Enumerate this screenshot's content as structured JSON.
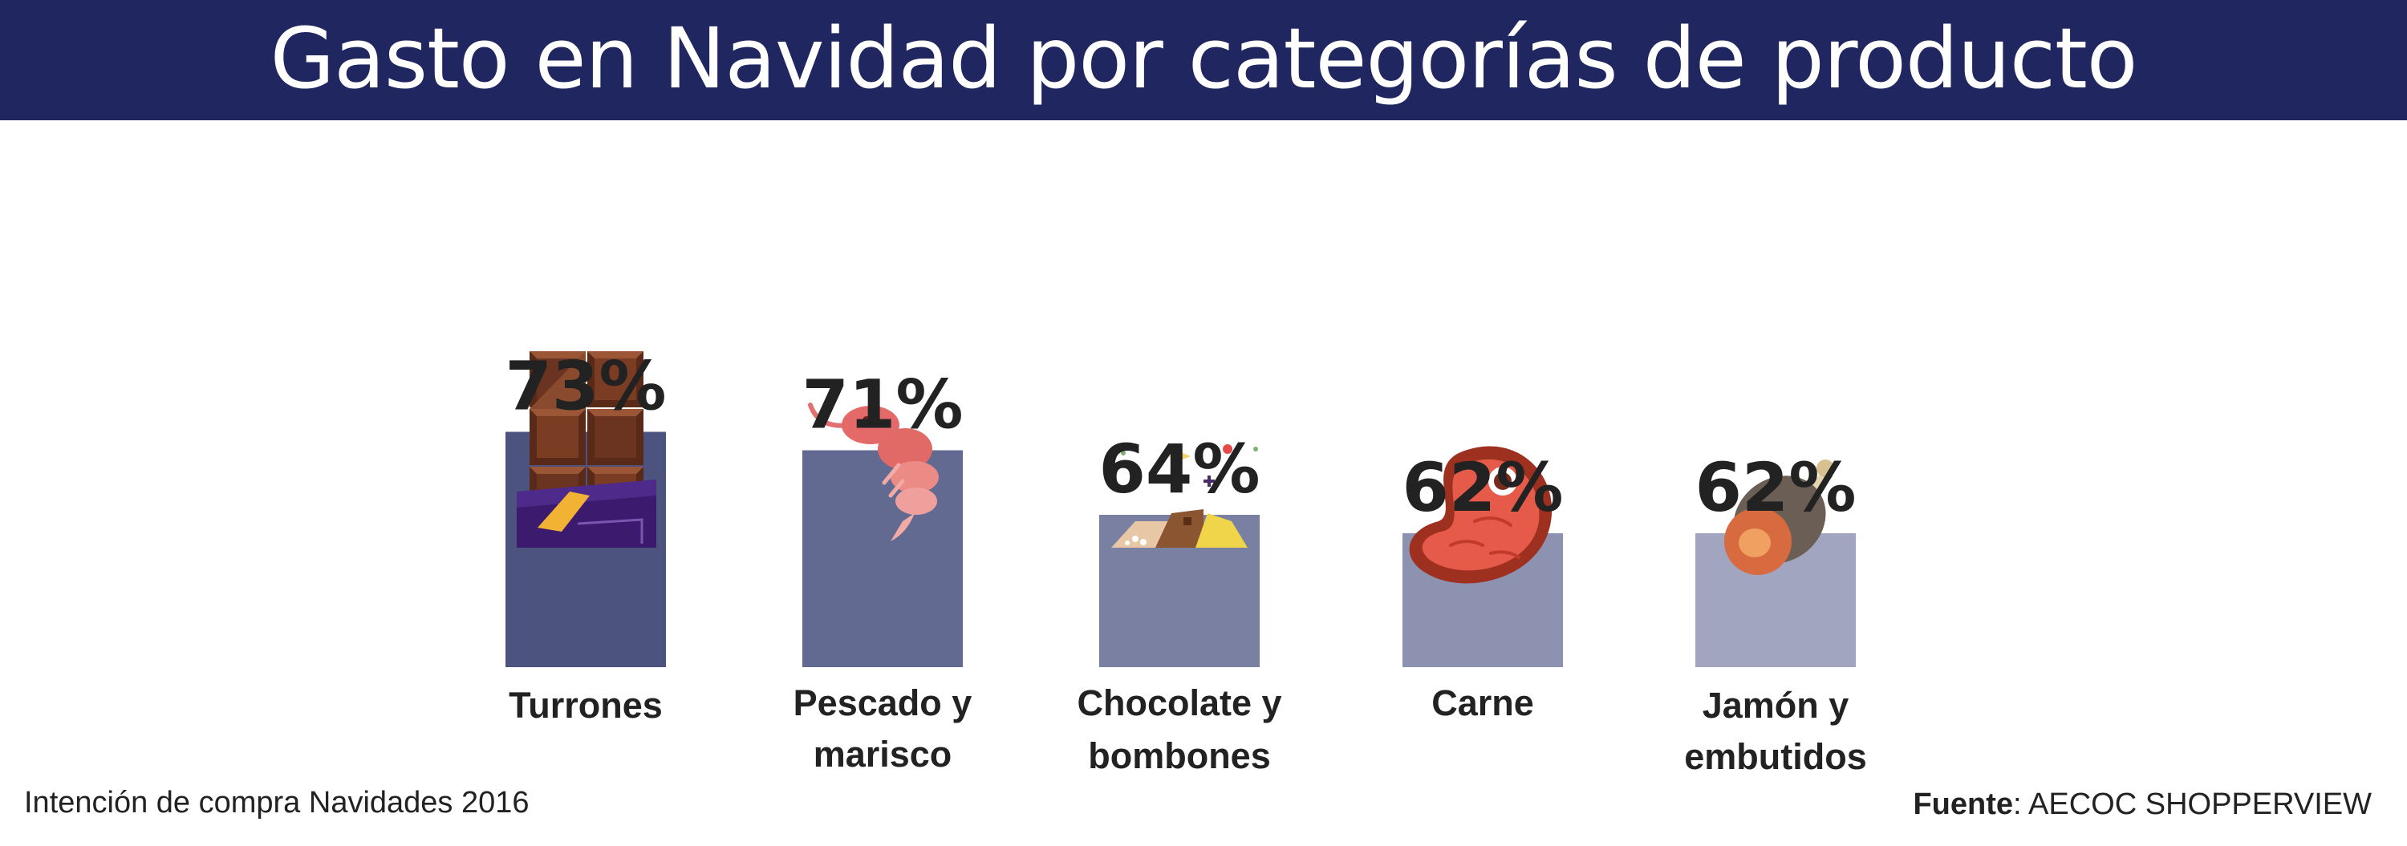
{
  "title": "Gasto en Navidad por categorías de producto",
  "chart_data": {
    "type": "bar",
    "title": "Gasto en Navidad por categorías de producto",
    "unit": "%",
    "categories": [
      [
        "Turrones"
      ],
      [
        "Pescado y",
        "marisco"
      ],
      [
        "Chocolate y",
        "bombones"
      ],
      [
        "Carne"
      ],
      [
        "Jamón y",
        "embutidos"
      ]
    ],
    "values": [
      73,
      71,
      64,
      62,
      62
    ],
    "value_labels": [
      "73%",
      "71%",
      "64%",
      "62%",
      "62%"
    ],
    "bar_colors": [
      "#4b537e",
      "#636a91",
      "#7a80a2",
      "#8d92b0",
      "#a2a5bf"
    ],
    "icons": [
      "chocolate-bar-icon",
      "shrimp-icon",
      "bonbons-icon",
      "steak-icon",
      "ham-leg-icon"
    ]
  },
  "footnote": "Intención de compra Navidades 2016",
  "source": {
    "label": "Fuente",
    "text": ": AECOC SHOPPERVIEW"
  }
}
